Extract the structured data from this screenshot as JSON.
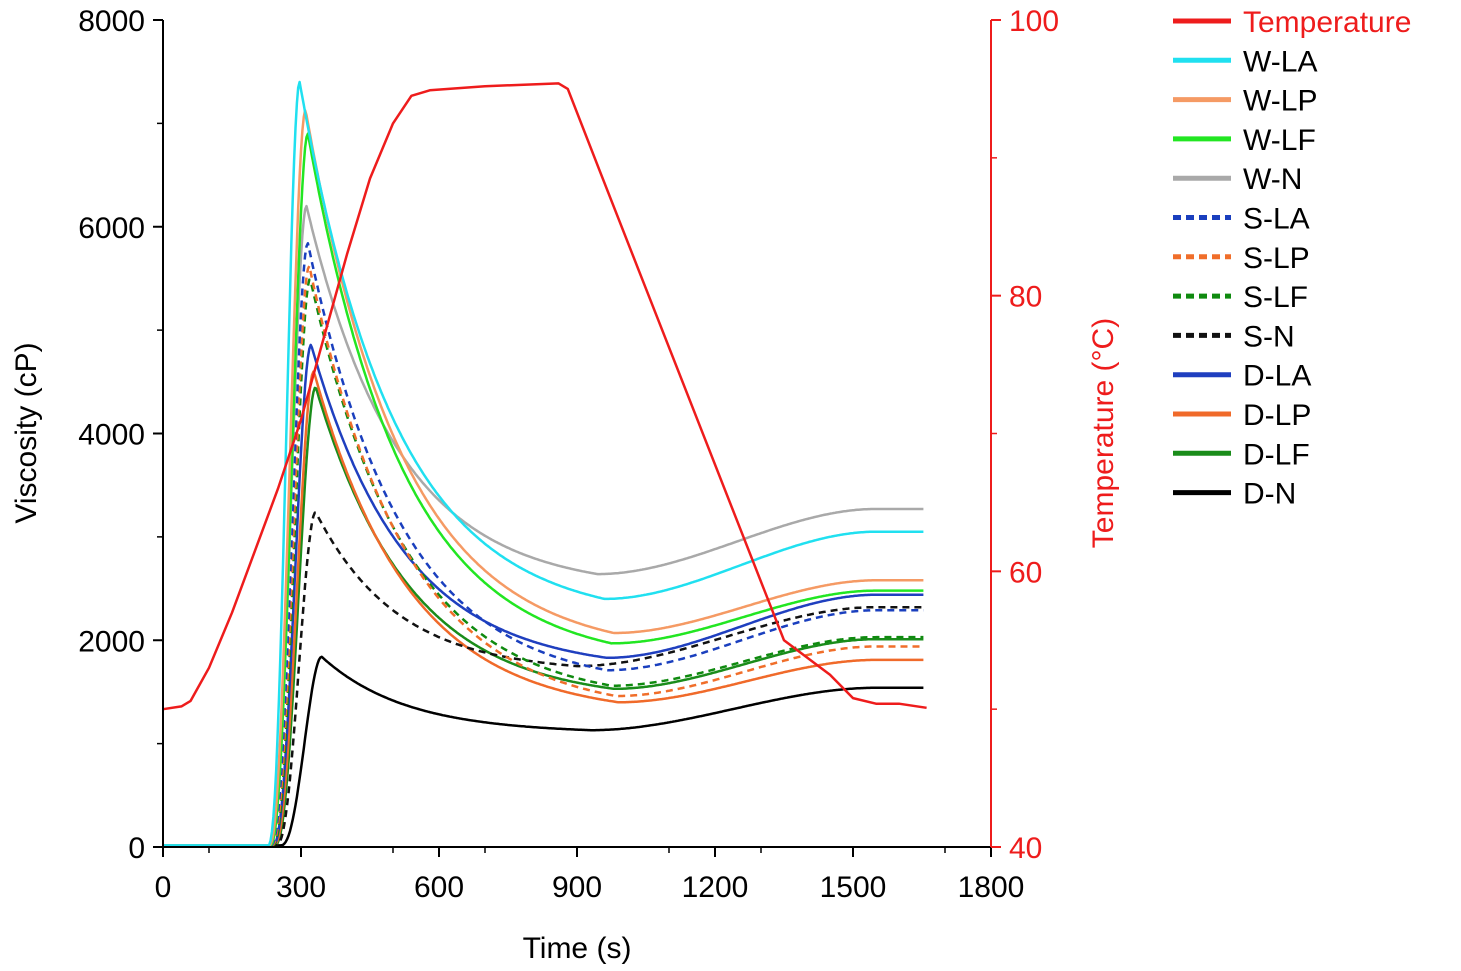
{
  "chart_data": {
    "type": "line",
    "xlabel": "Time (s)",
    "ylabel": "Viscosity (cP)",
    "y2label": "Temperature (°C)",
    "xlim": [
      0,
      1800
    ],
    "ylim": [
      0,
      8000
    ],
    "y2lim": [
      40,
      100
    ],
    "xticks": [
      "0",
      "300",
      "600",
      "900",
      "1200",
      "1500",
      "1800"
    ],
    "yticks": [
      "0",
      "2000",
      "4000",
      "6000",
      "8000"
    ],
    "y2ticks": [
      "40",
      "60",
      "80",
      "100"
    ],
    "legend_position": "right",
    "temperature": {
      "name": "Temperature",
      "color": "#ee1c1c",
      "points": [
        [
          0,
          50.0
        ],
        [
          40,
          50.2
        ],
        [
          60,
          50.6
        ],
        [
          100,
          53.0
        ],
        [
          150,
          57.0
        ],
        [
          200,
          61.5
        ],
        [
          250,
          66.0
        ],
        [
          300,
          71.0
        ],
        [
          350,
          77.0
        ],
        [
          400,
          83.0
        ],
        [
          450,
          88.5
        ],
        [
          500,
          92.5
        ],
        [
          540,
          94.5
        ],
        [
          580,
          94.9
        ],
        [
          700,
          95.2
        ],
        [
          860,
          95.4
        ],
        [
          880,
          95.0
        ],
        [
          950,
          89.0
        ],
        [
          1050,
          80.5
        ],
        [
          1150,
          72.0
        ],
        [
          1250,
          63.5
        ],
        [
          1350,
          55.0
        ],
        [
          1450,
          52.5
        ],
        [
          1500,
          50.8
        ],
        [
          1550,
          50.4
        ],
        [
          1600,
          50.4
        ],
        [
          1660,
          50.1
        ]
      ]
    },
    "series": [
      {
        "name": "W-LA",
        "color": "#20e0f0",
        "dash": false,
        "peak_time": 297,
        "peak_value": 7400,
        "onset": 228,
        "trough_time": 960,
        "trough_value": 2400,
        "final_value": 3050
      },
      {
        "name": "W-LP",
        "color": "#f59a64",
        "dash": false,
        "peak_time": 310,
        "peak_value": 7130,
        "onset": 230,
        "trough_time": 980,
        "trough_value": 2070,
        "final_value": 2580
      },
      {
        "name": "W-LF",
        "color": "#22e622",
        "dash": false,
        "peak_time": 315,
        "peak_value": 6900,
        "onset": 232,
        "trough_time": 975,
        "trough_value": 1970,
        "final_value": 2480
      },
      {
        "name": "W-N",
        "color": "#a9a9a9",
        "dash": false,
        "peak_time": 312,
        "peak_value": 6200,
        "onset": 232,
        "trough_time": 945,
        "trough_value": 2640,
        "final_value": 3270
      },
      {
        "name": "S-LA",
        "color": "#1a3fbe",
        "dash": true,
        "peak_time": 315,
        "peak_value": 5840,
        "onset": 234,
        "trough_time": 965,
        "trough_value": 1710,
        "final_value": 2290
      },
      {
        "name": "S-LP",
        "color": "#f06e2a",
        "dash": true,
        "peak_time": 318,
        "peak_value": 5620,
        "onset": 236,
        "trough_time": 985,
        "trough_value": 1460,
        "final_value": 1940
      },
      {
        "name": "S-LF",
        "color": "#0f8a0f",
        "dash": true,
        "peak_time": 320,
        "peak_value": 5500,
        "onset": 238,
        "trough_time": 975,
        "trough_value": 1560,
        "final_value": 2030
      },
      {
        "name": "S-N",
        "color": "#111111",
        "dash": true,
        "peak_time": 332,
        "peak_value": 3240,
        "onset": 245,
        "trough_time": 900,
        "trough_value": 1750,
        "final_value": 2320
      },
      {
        "name": "D-LA",
        "color": "#1f3fbf",
        "dash": false,
        "peak_time": 322,
        "peak_value": 4860,
        "onset": 238,
        "trough_time": 965,
        "trough_value": 1830,
        "final_value": 2440
      },
      {
        "name": "D-LP",
        "color": "#f06a2a",
        "dash": false,
        "peak_time": 328,
        "peak_value": 4600,
        "onset": 240,
        "trough_time": 990,
        "trough_value": 1400,
        "final_value": 1810
      },
      {
        "name": "D-LF",
        "color": "#1a8c1a",
        "dash": false,
        "peak_time": 332,
        "peak_value": 4450,
        "onset": 242,
        "trough_time": 980,
        "trough_value": 1530,
        "final_value": 2010
      },
      {
        "name": "D-N",
        "color": "#000000",
        "dash": false,
        "peak_time": 345,
        "peak_value": 1840,
        "onset": 255,
        "trough_time": 930,
        "trough_value": 1130,
        "final_value": 1540
      }
    ],
    "end_time": 1655
  }
}
